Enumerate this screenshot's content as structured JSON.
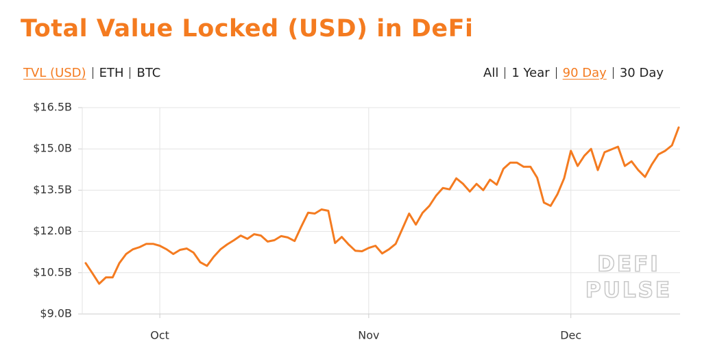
{
  "title": "Total Value Locked (USD) in DeFi",
  "tabs": [
    "TVL (USD)",
    "ETH",
    "BTC"
  ],
  "active_tab": 0,
  "ranges": [
    "All",
    "1 Year",
    "90 Day",
    "30 Day"
  ],
  "active_range": 2,
  "watermark": [
    "DEFI",
    "PULSE"
  ],
  "chart_data": {
    "type": "line",
    "color": "#f47b20",
    "grid": true,
    "ylim": [
      9.0,
      16.5
    ],
    "yticks": [
      {
        "value": 9.0,
        "label": "$9.0B"
      },
      {
        "value": 10.5,
        "label": "$10.5B"
      },
      {
        "value": 12.0,
        "label": "$12.0B"
      },
      {
        "value": 13.5,
        "label": "$13.5B"
      },
      {
        "value": 15.0,
        "label": "$15.0B"
      },
      {
        "value": 16.5,
        "label": "$16.5B"
      }
    ],
    "categories": [
      null,
      null,
      null,
      null,
      null,
      null,
      null,
      null,
      null,
      null,
      null,
      "Oct",
      null,
      null,
      null,
      null,
      null,
      null,
      null,
      null,
      null,
      null,
      null,
      null,
      null,
      null,
      null,
      null,
      null,
      null,
      null,
      null,
      null,
      null,
      null,
      null,
      null,
      null,
      null,
      null,
      null,
      null,
      "Nov",
      null,
      null,
      null,
      null,
      null,
      null,
      null,
      null,
      null,
      null,
      null,
      null,
      null,
      null,
      null,
      null,
      null,
      null,
      null,
      null,
      null,
      null,
      null,
      null,
      null,
      null,
      null,
      null,
      null,
      "Dec",
      null,
      null,
      null,
      null,
      null,
      null,
      null,
      null,
      null,
      null,
      null,
      null,
      null,
      null,
      null,
      null
    ],
    "values": [
      10.85,
      10.48,
      10.1,
      10.33,
      10.33,
      10.85,
      11.18,
      11.35,
      11.43,
      11.55,
      11.55,
      11.48,
      11.35,
      11.18,
      11.33,
      11.38,
      11.23,
      10.88,
      10.75,
      11.08,
      11.35,
      11.53,
      11.68,
      11.85,
      11.73,
      11.9,
      11.85,
      11.63,
      11.68,
      11.83,
      11.78,
      11.65,
      12.18,
      12.68,
      12.65,
      12.8,
      12.75,
      11.58,
      11.8,
      11.53,
      11.3,
      11.28,
      11.4,
      11.48,
      11.2,
      11.35,
      11.55,
      12.1,
      12.65,
      12.25,
      12.68,
      12.93,
      13.3,
      13.58,
      13.53,
      13.93,
      13.73,
      13.45,
      13.73,
      13.5,
      13.88,
      13.7,
      14.28,
      14.5,
      14.5,
      14.35,
      14.35,
      13.95,
      13.05,
      12.93,
      13.35,
      13.93,
      14.93,
      14.38,
      14.75,
      15.0,
      14.23,
      14.88,
      14.98,
      15.08,
      14.38,
      14.55,
      14.23,
      13.98,
      14.43,
      14.8,
      14.93,
      15.13,
      15.78
    ]
  }
}
